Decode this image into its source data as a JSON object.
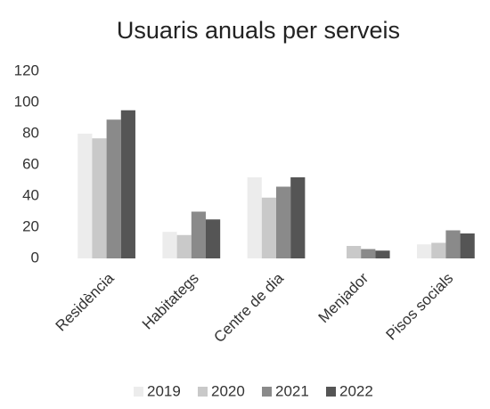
{
  "chart_data": {
    "type": "bar",
    "title": "Usuaris anuals per serveis",
    "categories": [
      "Residència",
      "Habitategs",
      "Centre de dia",
      "Menjador",
      "Pisos socials"
    ],
    "series": [
      {
        "name": "2019",
        "color": "#ececec",
        "values": [
          80,
          17,
          52,
          0,
          9
        ]
      },
      {
        "name": "2020",
        "color": "#c9c9c9",
        "values": [
          77,
          15,
          39,
          8,
          10
        ]
      },
      {
        "name": "2021",
        "color": "#8a8a8a",
        "values": [
          89,
          30,
          46,
          6,
          18
        ]
      },
      {
        "name": "2022",
        "color": "#555555",
        "values": [
          95,
          25,
          52,
          5,
          16
        ]
      }
    ],
    "ylim": [
      0,
      120
    ],
    "yticks": [
      0,
      20,
      40,
      60,
      80,
      100,
      120
    ],
    "grid": false
  }
}
